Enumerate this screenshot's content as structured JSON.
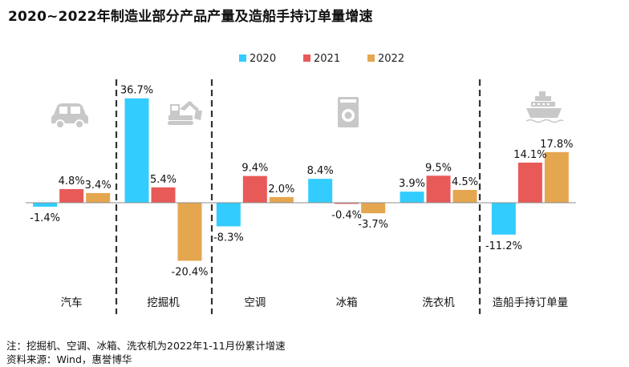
{
  "title": "2020~2022年制造业部分产品产量及造船手持订单量增速",
  "chart_data": {
    "type": "bar",
    "categories": [
      "汽车",
      "挖掘机",
      "空调",
      "冰箱",
      "洗衣机",
      "造船手持订单量"
    ],
    "series": [
      {
        "name": "2020",
        "color": "#33ccff",
        "values": [
          -1.4,
          36.7,
          -8.3,
          8.4,
          3.9,
          -11.2
        ],
        "labels": [
          "-1.4%",
          "36.7%",
          "-8.3%",
          "8.4%",
          "3.9%",
          "-11.2%"
        ]
      },
      {
        "name": "2021",
        "color": "#e85a57",
        "values": [
          4.8,
          5.4,
          9.4,
          -0.4,
          9.5,
          14.1
        ],
        "labels": [
          "4.8%",
          "5.4%",
          "9.4%",
          "-0.4%",
          "9.5%",
          "14.1%"
        ]
      },
      {
        "name": "2022",
        "color": "#e5a650",
        "values": [
          3.4,
          -20.4,
          2.0,
          -3.7,
          4.5,
          17.8
        ],
        "labels": [
          "3.4%",
          "-20.4%",
          "2.0%",
          "-3.7%",
          "4.5%",
          "17.8%"
        ]
      }
    ],
    "ylim": [
      -25,
      40
    ],
    "grid": false,
    "legend": "top-center",
    "icons": [
      "car-icon",
      "excavator-icon",
      "washing-machine-icon",
      "ship-icon"
    ]
  },
  "notes": {
    "note1": "注：挖掘机、空调、冰箱、洗衣机为2022年1-11月份累计增速",
    "note2": "资料来源：Wind，惠誉博华"
  }
}
